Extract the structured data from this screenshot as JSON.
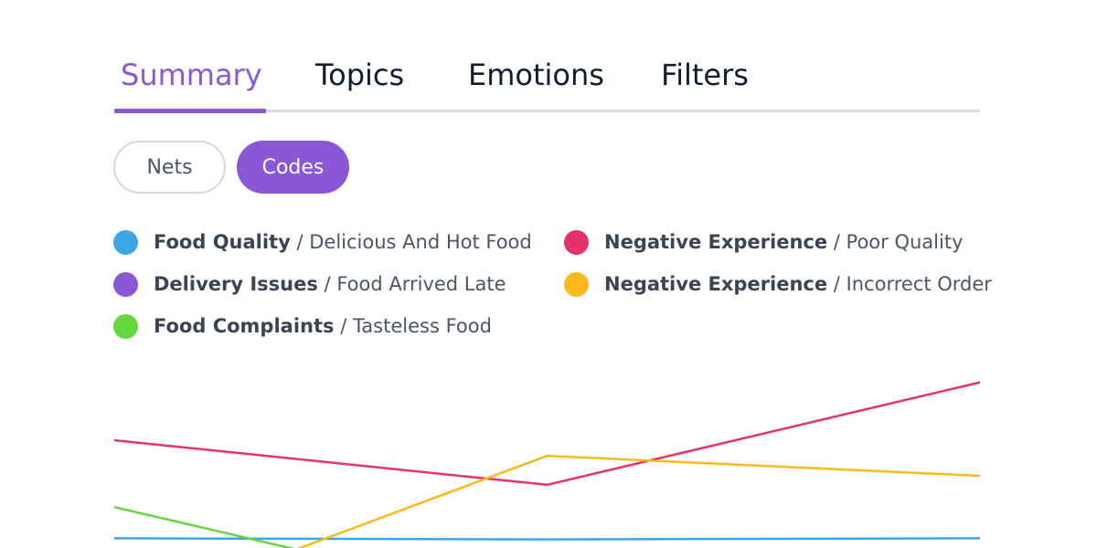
{
  "tabs": {
    "summary": "Summary",
    "topics": "Topics",
    "emotions": "Emotions",
    "filters": "Filters",
    "active": "Summary"
  },
  "toggle": {
    "nets": "Nets",
    "codes": "Codes",
    "selected": "Codes"
  },
  "legend": [
    {
      "net": "Food Quality",
      "sep": " / ",
      "code": "Delicious And Hot Food",
      "color": "#3da6e8"
    },
    {
      "net": "Delivery Issues",
      "sep": " / ",
      "code": "Food Arrived Late",
      "color": "#8a57d6"
    },
    {
      "net": "Food Complaints",
      "sep": " / ",
      "code": "Tasteless Food",
      "color": "#66d63f"
    },
    {
      "net": "Negative Experience",
      "sep": " / ",
      "code": "Poor Quality",
      "color": "#e3336b"
    },
    {
      "net": "Negative Experience",
      "sep": " / ",
      "code": "Incorrect Order",
      "color": "#fbb91c"
    }
  ],
  "chart_data": {
    "type": "line",
    "x": [
      0,
      1,
      2
    ],
    "ylim": [
      0,
      100
    ],
    "grid": false,
    "legend_position": "top",
    "series": [
      {
        "name": "Food Quality / Delicious And Hot Food",
        "color": "#3da6e8",
        "x": [
          0,
          1,
          2
        ],
        "values": [
          6,
          5.5,
          6
        ]
      },
      {
        "name": "Food Complaints / Tasteless Food",
        "color": "#66d63f",
        "x": [
          0,
          0.42
        ],
        "values": [
          20,
          1
        ]
      },
      {
        "name": "Negative Experience / Poor Quality",
        "color": "#e3336b",
        "x": [
          0,
          1,
          2
        ],
        "values": [
          50,
          30,
          76
        ]
      },
      {
        "name": "Negative Experience / Incorrect Order",
        "color": "#fbb91c",
        "x": [
          0.42,
          1,
          2
        ],
        "values": [
          1,
          43,
          34
        ]
      }
    ]
  }
}
